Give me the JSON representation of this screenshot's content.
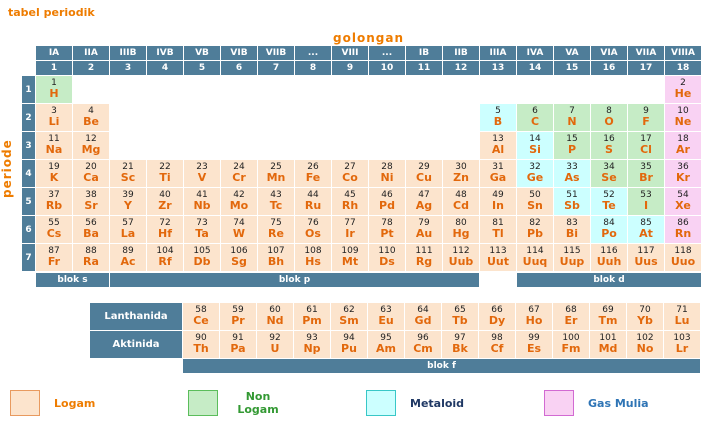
{
  "title": "tabel periodik",
  "axes": {
    "group": "golongan",
    "period": "periode"
  },
  "header": {
    "group_headers": [
      "IA",
      "IIA",
      "IIIB",
      "IVB",
      "VB",
      "VIB",
      "VIIB",
      "...",
      "VIII",
      "...",
      "IB",
      "IIB",
      "IIIA",
      "IVA",
      "VA",
      "VIA",
      "VIIA",
      "VIIIA"
    ],
    "group_numbers": [
      "1",
      "2",
      "3",
      "4",
      "5",
      "6",
      "7",
      "8",
      "9",
      "10",
      "11",
      "12",
      "13",
      "14",
      "15",
      "16",
      "17",
      "18"
    ],
    "period_numbers": [
      "1",
      "2",
      "3",
      "4",
      "5",
      "6",
      "7"
    ]
  },
  "blocks": {
    "s": "blok s",
    "p": "blok p",
    "d": "blok d",
    "f": "blok f"
  },
  "element_format": [
    "period",
    "group",
    "atomic_number",
    "symbol",
    "category"
  ],
  "elements": [
    [
      1,
      1,
      "1",
      "H",
      "nonmetal"
    ],
    [
      1,
      18,
      "2",
      "He",
      "noble"
    ],
    [
      2,
      1,
      "3",
      "Li",
      "metal"
    ],
    [
      2,
      2,
      "4",
      "Be",
      "metal"
    ],
    [
      2,
      13,
      "5",
      "B",
      "metalloid"
    ],
    [
      2,
      14,
      "6",
      "C",
      "nonmetal"
    ],
    [
      2,
      15,
      "7",
      "N",
      "nonmetal"
    ],
    [
      2,
      16,
      "8",
      "O",
      "nonmetal"
    ],
    [
      2,
      17,
      "9",
      "F",
      "nonmetal"
    ],
    [
      2,
      18,
      "10",
      "Ne",
      "noble"
    ],
    [
      3,
      1,
      "11",
      "Na",
      "metal"
    ],
    [
      3,
      2,
      "12",
      "Mg",
      "metal"
    ],
    [
      3,
      13,
      "13",
      "Al",
      "metal"
    ],
    [
      3,
      14,
      "14",
      "Si",
      "metalloid"
    ],
    [
      3,
      15,
      "15",
      "P",
      "nonmetal"
    ],
    [
      3,
      16,
      "16",
      "S",
      "nonmetal"
    ],
    [
      3,
      17,
      "17",
      "Cl",
      "nonmetal"
    ],
    [
      3,
      18,
      "18",
      "Ar",
      "noble"
    ],
    [
      4,
      1,
      "19",
      "K",
      "metal"
    ],
    [
      4,
      2,
      "20",
      "Ca",
      "metal"
    ],
    [
      4,
      3,
      "21",
      "Sc",
      "metal"
    ],
    [
      4,
      4,
      "22",
      "Ti",
      "metal"
    ],
    [
      4,
      5,
      "23",
      "V",
      "metal"
    ],
    [
      4,
      6,
      "24",
      "Cr",
      "metal"
    ],
    [
      4,
      7,
      "25",
      "Mn",
      "metal"
    ],
    [
      4,
      8,
      "26",
      "Fe",
      "metal"
    ],
    [
      4,
      9,
      "27",
      "Co",
      "metal"
    ],
    [
      4,
      10,
      "28",
      "Ni",
      "metal"
    ],
    [
      4,
      11,
      "29",
      "Cu",
      "metal"
    ],
    [
      4,
      12,
      "30",
      "Zn",
      "metal"
    ],
    [
      4,
      13,
      "31",
      "Ga",
      "metal"
    ],
    [
      4,
      14,
      "32",
      "Ge",
      "metalloid"
    ],
    [
      4,
      15,
      "33",
      "As",
      "metalloid"
    ],
    [
      4,
      16,
      "34",
      "Se",
      "nonmetal"
    ],
    [
      4,
      17,
      "35",
      "Br",
      "nonmetal"
    ],
    [
      4,
      18,
      "36",
      "Kr",
      "noble"
    ],
    [
      5,
      1,
      "37",
      "Rb",
      "metal"
    ],
    [
      5,
      2,
      "38",
      "Sr",
      "metal"
    ],
    [
      5,
      3,
      "39",
      "Y",
      "metal"
    ],
    [
      5,
      4,
      "40",
      "Zr",
      "metal"
    ],
    [
      5,
      5,
      "41",
      "Nb",
      "metal"
    ],
    [
      5,
      6,
      "42",
      "Mo",
      "metal"
    ],
    [
      5,
      7,
      "43",
      "Tc",
      "metal"
    ],
    [
      5,
      8,
      "44",
      "Ru",
      "metal"
    ],
    [
      5,
      9,
      "45",
      "Rh",
      "metal"
    ],
    [
      5,
      10,
      "46",
      "Pd",
      "metal"
    ],
    [
      5,
      11,
      "47",
      "Ag",
      "metal"
    ],
    [
      5,
      12,
      "48",
      "Cd",
      "metal"
    ],
    [
      5,
      13,
      "49",
      "In",
      "metal"
    ],
    [
      5,
      14,
      "50",
      "Sn",
      "metal"
    ],
    [
      5,
      15,
      "51",
      "Sb",
      "metalloid"
    ],
    [
      5,
      16,
      "52",
      "Te",
      "metalloid"
    ],
    [
      5,
      17,
      "53",
      "I",
      "nonmetal"
    ],
    [
      5,
      18,
      "54",
      "Xe",
      "noble"
    ],
    [
      6,
      1,
      "55",
      "Cs",
      "metal"
    ],
    [
      6,
      2,
      "56",
      "Ba",
      "metal"
    ],
    [
      6,
      3,
      "57",
      "La",
      "metal"
    ],
    [
      6,
      4,
      "72",
      "Hf",
      "metal"
    ],
    [
      6,
      5,
      "73",
      "Ta",
      "metal"
    ],
    [
      6,
      6,
      "74",
      "W",
      "metal"
    ],
    [
      6,
      7,
      "75",
      "Re",
      "metal"
    ],
    [
      6,
      8,
      "76",
      "Os",
      "metal"
    ],
    [
      6,
      9,
      "77",
      "Ir",
      "metal"
    ],
    [
      6,
      10,
      "78",
      "Pt",
      "metal"
    ],
    [
      6,
      11,
      "79",
      "Au",
      "metal"
    ],
    [
      6,
      12,
      "80",
      "Hg",
      "metal"
    ],
    [
      6,
      13,
      "81",
      "Tl",
      "metal"
    ],
    [
      6,
      14,
      "82",
      "Pb",
      "metal"
    ],
    [
      6,
      15,
      "83",
      "Bi",
      "metal"
    ],
    [
      6,
      16,
      "84",
      "Po",
      "metalloid"
    ],
    [
      6,
      17,
      "85",
      "At",
      "metalloid"
    ],
    [
      6,
      18,
      "86",
      "Rn",
      "noble"
    ],
    [
      7,
      1,
      "87",
      "Fr",
      "metal"
    ],
    [
      7,
      2,
      "88",
      "Ra",
      "metal"
    ],
    [
      7,
      3,
      "89",
      "Ac",
      "metal"
    ],
    [
      7,
      4,
      "104",
      "Rf",
      "metal"
    ],
    [
      7,
      5,
      "105",
      "Db",
      "metal"
    ],
    [
      7,
      6,
      "106",
      "Sg",
      "metal"
    ],
    [
      7,
      7,
      "107",
      "Bh",
      "metal"
    ],
    [
      7,
      8,
      "108",
      "Hs",
      "metal"
    ],
    [
      7,
      9,
      "109",
      "Mt",
      "metal"
    ],
    [
      7,
      10,
      "110",
      "Ds",
      "metal"
    ],
    [
      7,
      11,
      "111",
      "Rg",
      "metal"
    ],
    [
      7,
      12,
      "112",
      "Uub",
      "metal"
    ],
    [
      7,
      13,
      "113",
      "Uut",
      "metal"
    ],
    [
      7,
      14,
      "114",
      "Uuq",
      "metal"
    ],
    [
      7,
      15,
      "115",
      "Uup",
      "metal"
    ],
    [
      7,
      16,
      "116",
      "Uuh",
      "metal"
    ],
    [
      7,
      17,
      "117",
      "Uus",
      "metal"
    ],
    [
      7,
      18,
      "118",
      "Uuo",
      "metal"
    ]
  ],
  "f_block": {
    "lanthanide_label": "Lanthanida",
    "actinide_label": "Aktinida",
    "category": "metal",
    "lanthanides": [
      [
        "58",
        "Ce"
      ],
      [
        "59",
        "Pr"
      ],
      [
        "60",
        "Nd"
      ],
      [
        "61",
        "Pm"
      ],
      [
        "62",
        "Sm"
      ],
      [
        "63",
        "Eu"
      ],
      [
        "64",
        "Gd"
      ],
      [
        "65",
        "Tb"
      ],
      [
        "66",
        "Dy"
      ],
      [
        "67",
        "Ho"
      ],
      [
        "68",
        "Er"
      ],
      [
        "69",
        "Tm"
      ],
      [
        "70",
        "Yb"
      ],
      [
        "71",
        "Lu"
      ]
    ],
    "actinides": [
      [
        "90",
        "Th"
      ],
      [
        "91",
        "Pa"
      ],
      [
        "92",
        "U"
      ],
      [
        "93",
        "Np"
      ],
      [
        "94",
        "Pu"
      ],
      [
        "95",
        "Am"
      ],
      [
        "96",
        "Cm"
      ],
      [
        "97",
        "Bk"
      ],
      [
        "98",
        "Cf"
      ],
      [
        "99",
        "Es"
      ],
      [
        "100",
        "Fm"
      ],
      [
        "101",
        "Md"
      ],
      [
        "102",
        "No"
      ],
      [
        "103",
        "Lr"
      ]
    ]
  },
  "legend": [
    {
      "label": "Logam",
      "fill": "#FCE4CD",
      "border": "#E89A5F",
      "label_color": "#EE7C00"
    },
    {
      "label": "Non Logam",
      "fill": "#C6ECC6",
      "border": "#5BBD5B",
      "label_color": "#339933"
    },
    {
      "label": "Metaloid",
      "fill": "#CCFFFF",
      "border": "#38C7C7",
      "label_color": "#1F3864"
    },
    {
      "label": "Gas Mulia",
      "fill": "#F9D2F3",
      "border": "#D26AD2",
      "label_color": "#2E74B5"
    }
  ],
  "colors": {
    "accent": "#EE7C00",
    "header_bg": "#4F7D99",
    "symbol": "#E2680C",
    "number": "#222222",
    "metal": "#FCE4CD",
    "nonmetal": "#C6ECC6",
    "metalloid": "#CCFFFF",
    "noble": "#F9D2F3"
  }
}
